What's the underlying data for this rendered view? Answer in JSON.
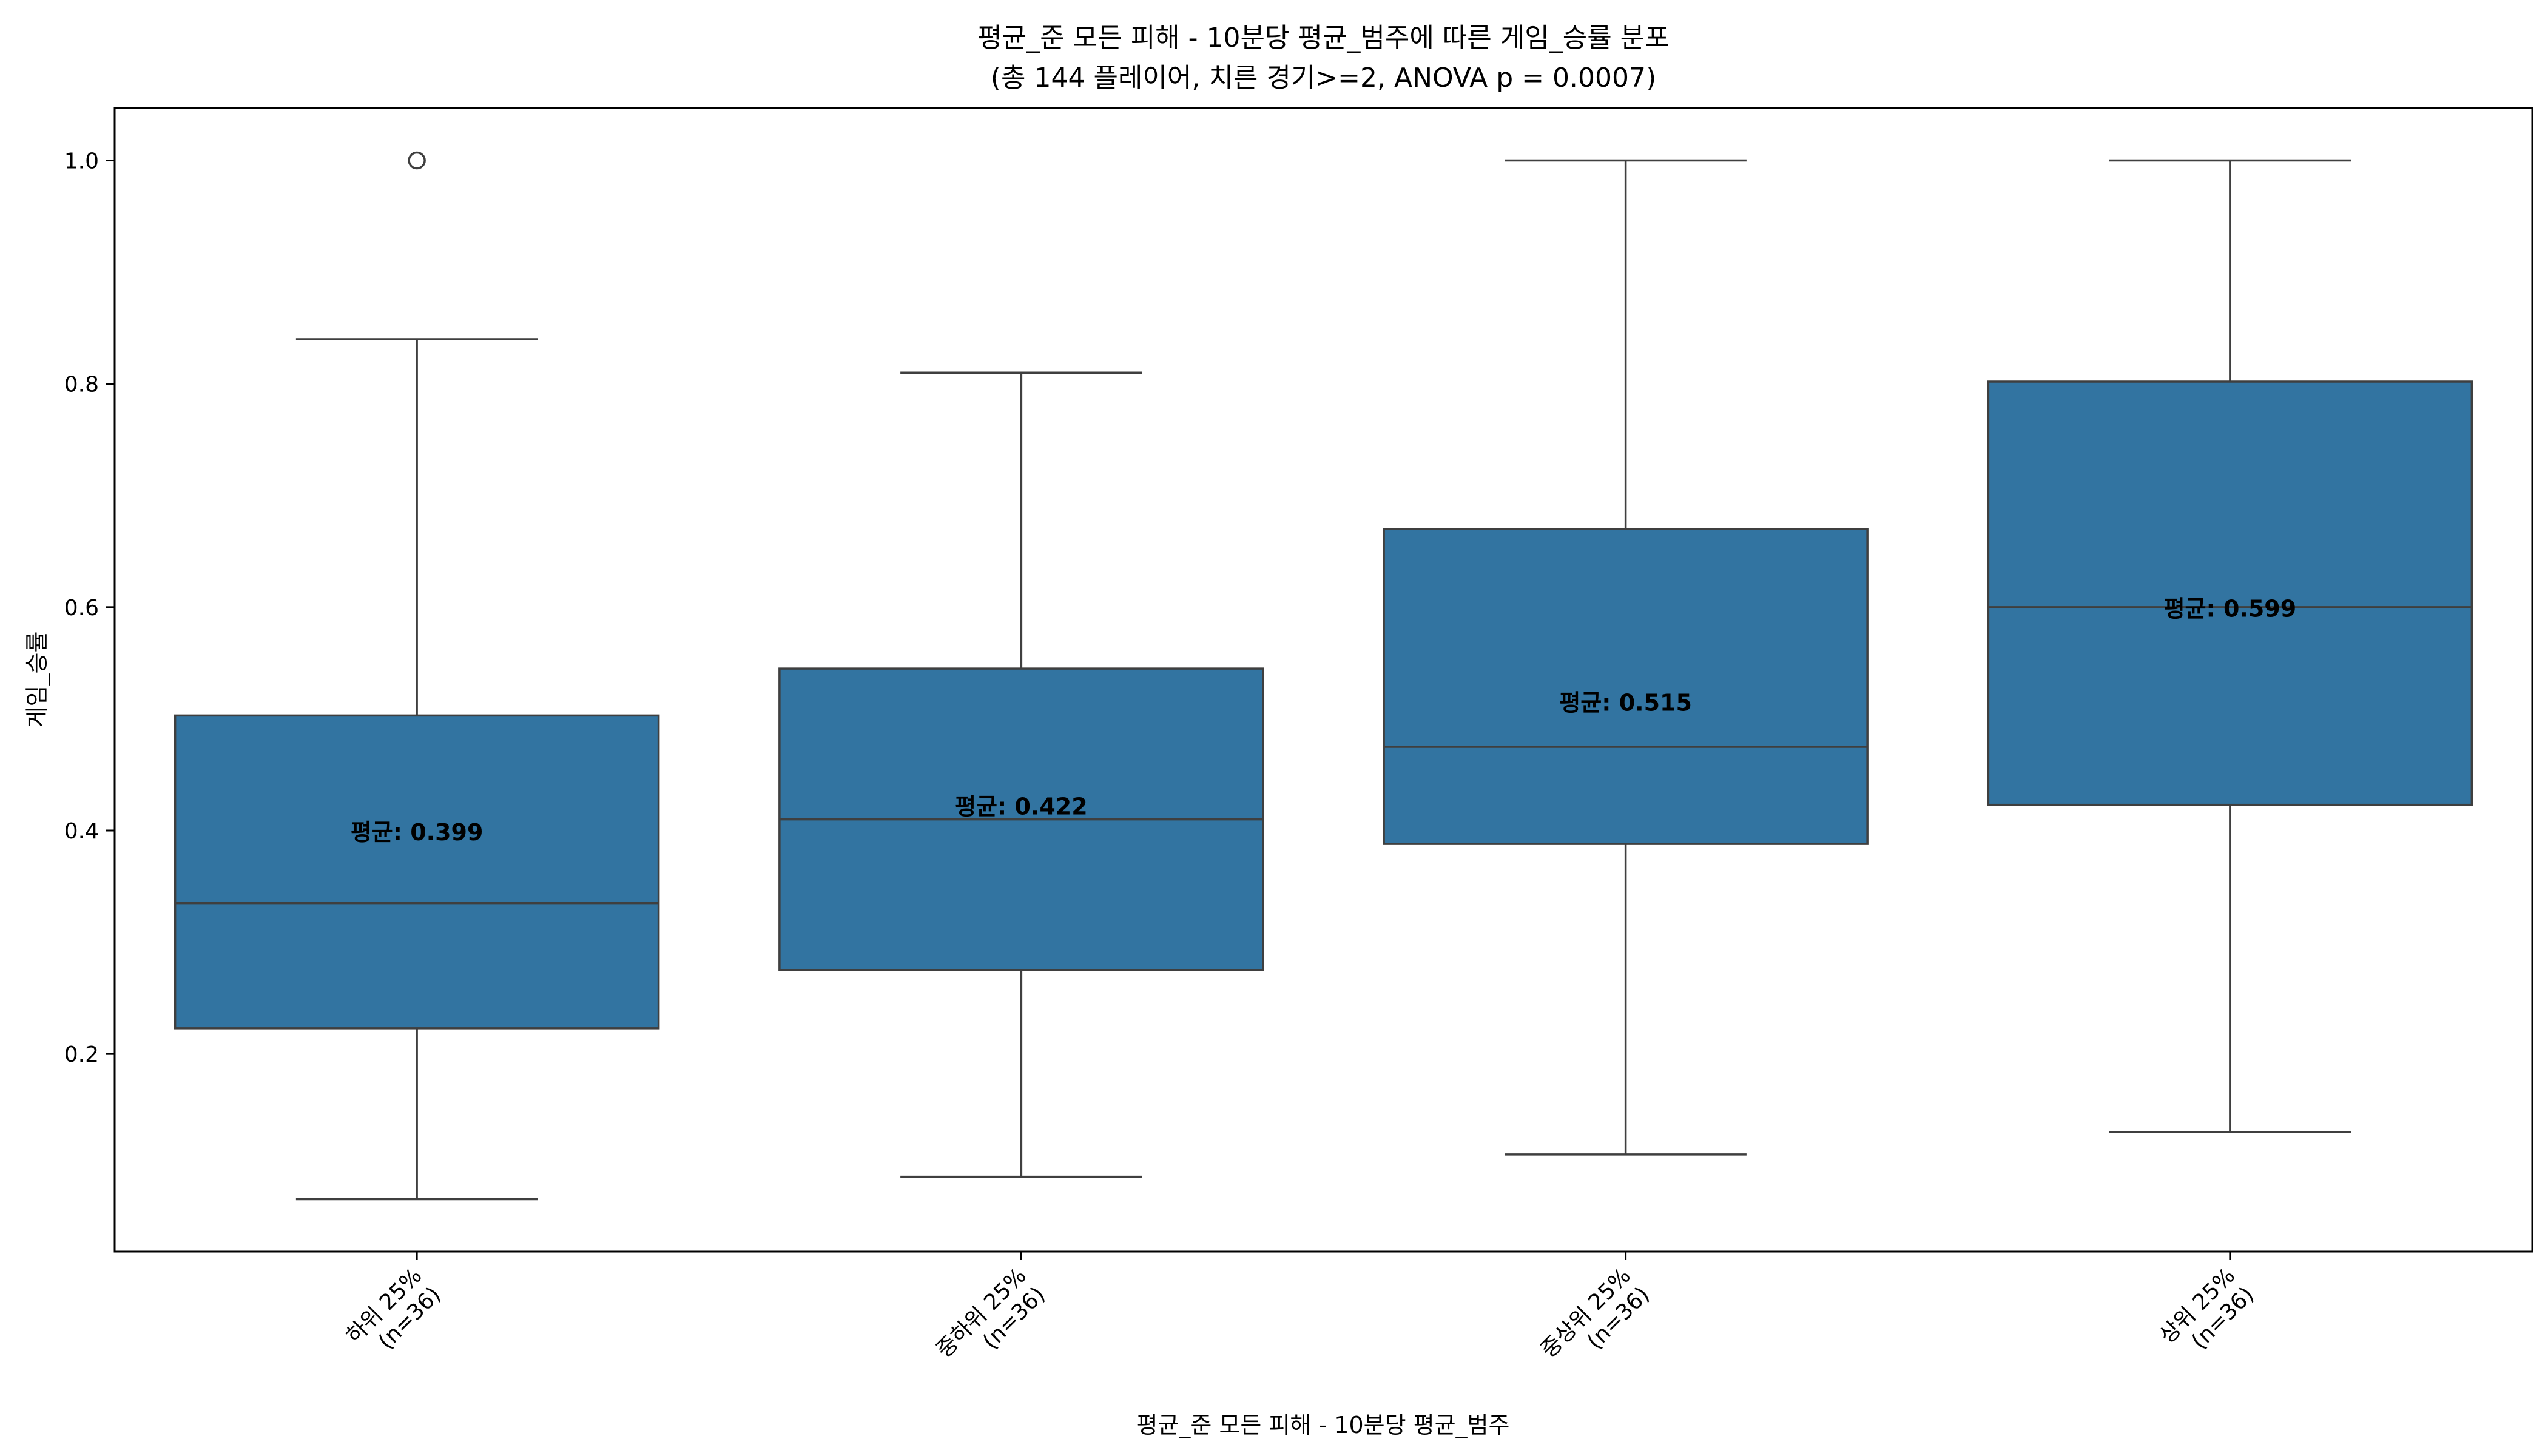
{
  "chart_data": {
    "type": "box",
    "title": "평균_준 모든 피해 - 10분당 평균_범주에 따른 게임_승률 분포",
    "subtitle": "(총 144 플레이어, 치른 경기>=2, ANOVA p = 0.0007)",
    "xlabel": "평균_준 모든 피해 - 10분당 평균_범주",
    "ylabel": "게임_승률",
    "ylim": [
      0.023,
      1.047
    ],
    "yticks": [
      0.2,
      0.4,
      0.6,
      0.8,
      1.0
    ],
    "ytick_labels": [
      "0.2",
      "0.4",
      "0.6",
      "0.8",
      "1.0"
    ],
    "grid": false,
    "box_color": "#3274a1",
    "line_color": "#3f3f3f",
    "categories": [
      {
        "label_line1": "하위 25%",
        "label_line2": "(n=36)",
        "whisker_low": 0.07,
        "q1": 0.223,
        "median": 0.335,
        "q3": 0.503,
        "whisker_high": 0.84,
        "outliers": [
          1.0
        ],
        "mean": 0.399,
        "mean_label": "평균: 0.399"
      },
      {
        "label_line1": "중하위 25%",
        "label_line2": "(n=36)",
        "whisker_low": 0.09,
        "q1": 0.275,
        "median": 0.41,
        "q3": 0.545,
        "whisker_high": 0.81,
        "outliers": [],
        "mean": 0.422,
        "mean_label": "평균: 0.422"
      },
      {
        "label_line1": "중상위 25%",
        "label_line2": "(n=36)",
        "whisker_low": 0.11,
        "q1": 0.388,
        "median": 0.475,
        "q3": 0.67,
        "whisker_high": 1.0,
        "outliers": [],
        "mean": 0.515,
        "mean_label": "평균: 0.515"
      },
      {
        "label_line1": "상위 25%",
        "label_line2": "(n=36)",
        "whisker_low": 0.13,
        "q1": 0.423,
        "median": 0.6,
        "q3": 0.802,
        "whisker_high": 1.0,
        "outliers": [],
        "mean": 0.599,
        "mean_label": "평균: 0.599"
      }
    ]
  }
}
